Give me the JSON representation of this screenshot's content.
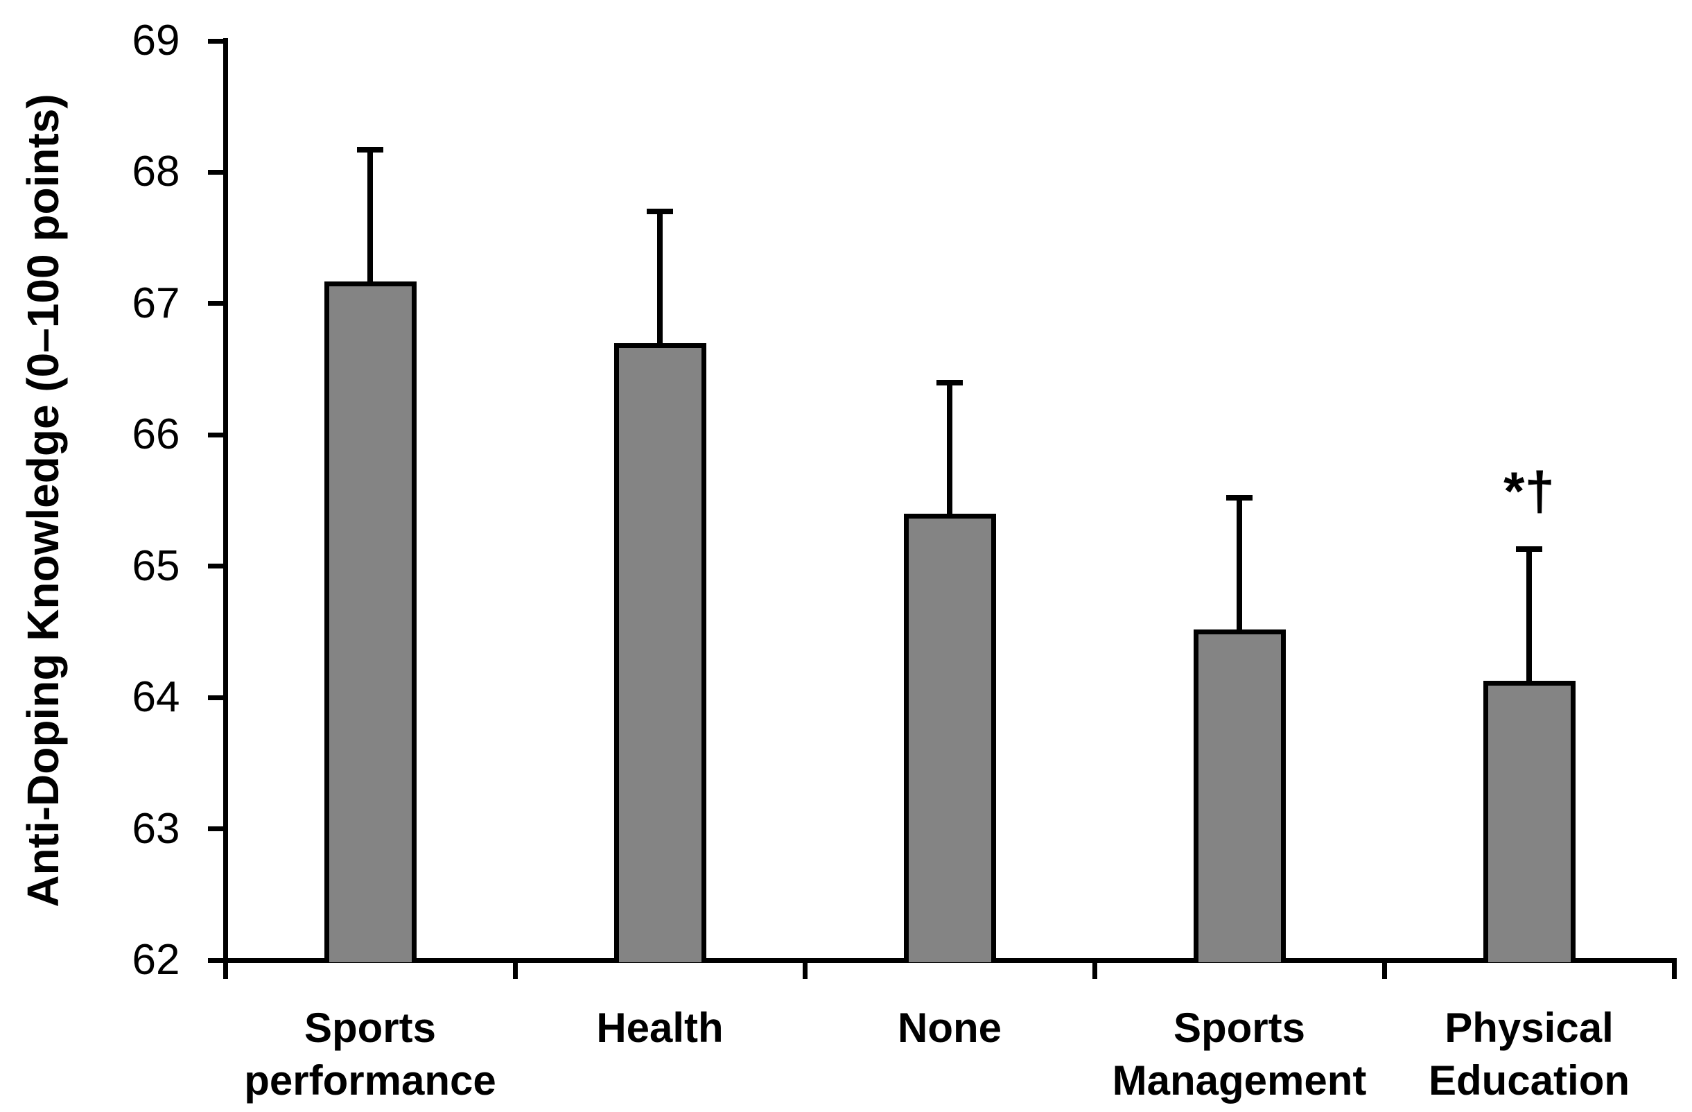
{
  "chart_data": {
    "type": "bar",
    "title": "",
    "xlabel": "",
    "ylabel": "Anti-Doping Knowledge (0–100 points)",
    "categories": [
      "Sports\nperformance",
      "Health",
      "None",
      "Sports\nManagement",
      "Physical\nEducation"
    ],
    "values": [
      67.17,
      66.7,
      65.4,
      64.52,
      64.13
    ],
    "errors_up": [
      1.0,
      1.0,
      1.0,
      1.0,
      1.0
    ],
    "ylim": [
      62,
      69
    ],
    "yticks": [
      62,
      63,
      64,
      65,
      66,
      67,
      68,
      69
    ],
    "grid": false,
    "legend": null,
    "annotations": [
      {
        "text": "*†",
        "category_index": 4
      }
    ],
    "colors": {
      "bar_fill": "#848484",
      "bar_border": "#000000",
      "axis": "#000000",
      "text": "#000000",
      "background": "#ffffff"
    }
  }
}
